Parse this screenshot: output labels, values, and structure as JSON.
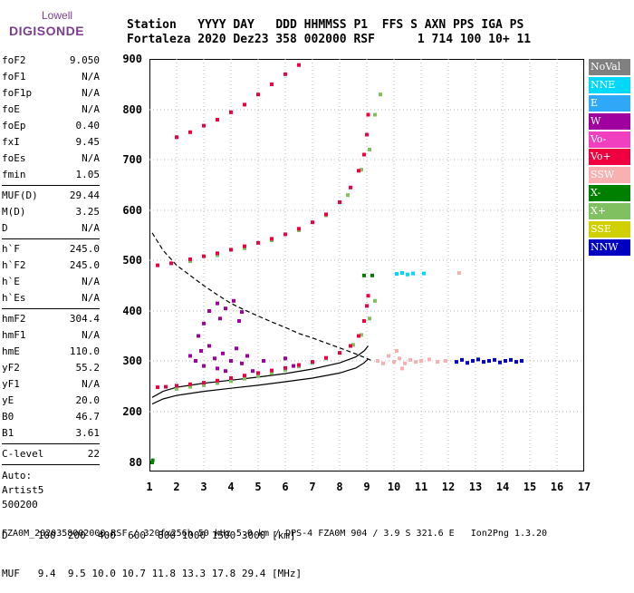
{
  "logo": {
    "top": "Lowell",
    "bottom": "DIGISONDE"
  },
  "header": {
    "row1": "Station   YYYY DAY   DDD HHMMSS P1  FFS S AXN PPS IGA PS",
    "row2": "Fortaleza 2020 Dez23 358 002000 RSF      1 714 100 10+ 11"
  },
  "params": {
    "group1": [
      {
        "name": "foF2",
        "value": "9.050"
      },
      {
        "name": "foF1",
        "value": "N/A"
      },
      {
        "name": "foF1p",
        "value": "N/A"
      },
      {
        "name": "foE",
        "value": "N/A"
      },
      {
        "name": "foEp",
        "value": "0.40"
      },
      {
        "name": "fxI",
        "value": "9.45"
      },
      {
        "name": "foEs",
        "value": "N/A"
      },
      {
        "name": "fmin",
        "value": "1.05"
      }
    ],
    "group2": [
      {
        "name": "MUF(D)",
        "value": "29.44"
      },
      {
        "name": "M(D)",
        "value": "3.25"
      },
      {
        "name": "D",
        "value": "N/A"
      }
    ],
    "group3": [
      {
        "name": "h`F",
        "value": "245.0"
      },
      {
        "name": "h`F2",
        "value": "245.0"
      },
      {
        "name": "h`E",
        "value": "N/A"
      },
      {
        "name": "h`Es",
        "value": "N/A"
      }
    ],
    "group4": [
      {
        "name": "hmF2",
        "value": "304.4"
      },
      {
        "name": "hmF1",
        "value": "N/A"
      },
      {
        "name": "hmE",
        "value": "110.0"
      },
      {
        "name": "yF2",
        "value": "55.2"
      },
      {
        "name": "yF1",
        "value": "N/A"
      },
      {
        "name": "yE",
        "value": "20.0"
      },
      {
        "name": "B0",
        "value": "46.7"
      },
      {
        "name": "B1",
        "value": "3.61"
      }
    ],
    "group5": [
      {
        "name": "C-level",
        "value": "22"
      }
    ],
    "auto": [
      "Auto:",
      "Artist5",
      "500200"
    ]
  },
  "legend": [
    {
      "label": "NoVal",
      "color": "#808080"
    },
    {
      "label": "NNE",
      "color": "#00d8f8"
    },
    {
      "label": "E",
      "color": "#30a8f8"
    },
    {
      "label": "W",
      "color": "#a000a0"
    },
    {
      "label": "Vo-",
      "color": "#f040c0"
    },
    {
      "label": "Vo+",
      "color": "#f00040"
    },
    {
      "label": "SSW",
      "color": "#f8b0b0"
    },
    {
      "label": "X-",
      "color": "#008000"
    },
    {
      "label": "X+",
      "color": "#80c060"
    },
    {
      "label": "SSE",
      "color": "#d0d000"
    },
    {
      "label": "NNW",
      "color": "#0000c0"
    }
  ],
  "bottom_table": {
    "d_row": "D     100  200  400  600  800 1000 1500 3000 [km]",
    "muf_row": "MUF   9.4  9.5 10.0 10.7 11.8 13.3 17.8 29.4 [MHz]"
  },
  "footer": "FZA0M_2020358002000.RSF / 320fx256h 50 kHz 5.0 km / DPS-4 FZA0M 904 / 3.9 S 321.6 E   Ion2Png 1.3.20",
  "chart_data": {
    "type": "scatter",
    "title": "",
    "xlabel": "",
    "ylabel": "",
    "xlim": [
      1,
      17
    ],
    "ylim": [
      80,
      900
    ],
    "xticks": [
      1,
      2,
      3,
      4,
      5,
      6,
      7,
      8,
      9,
      10,
      11,
      12,
      13,
      14,
      15,
      16,
      17
    ],
    "yticks": [
      80,
      200,
      300,
      400,
      500,
      600,
      700,
      800,
      900
    ],
    "grid": true,
    "legend_position": "right",
    "series": [
      {
        "name": "Vo+",
        "color": "#f00040",
        "points": [
          [
            1.3,
            248
          ],
          [
            1.6,
            249
          ],
          [
            2.0,
            251
          ],
          [
            2.5,
            254
          ],
          [
            3.0,
            257
          ],
          [
            3.5,
            261
          ],
          [
            4.0,
            266
          ],
          [
            4.5,
            271
          ],
          [
            5.0,
            276
          ],
          [
            5.5,
            281
          ],
          [
            6.0,
            286
          ],
          [
            6.5,
            292
          ],
          [
            7.0,
            298
          ],
          [
            7.5,
            306
          ],
          [
            8.0,
            316
          ],
          [
            8.4,
            330
          ],
          [
            8.7,
            350
          ],
          [
            8.9,
            380
          ],
          [
            9.0,
            410
          ],
          [
            9.05,
            430
          ],
          [
            1.3,
            490
          ],
          [
            1.8,
            494
          ],
          [
            2.5,
            502
          ],
          [
            3.0,
            508
          ],
          [
            3.5,
            514
          ],
          [
            4.0,
            521
          ],
          [
            4.5,
            528
          ],
          [
            5.0,
            535
          ],
          [
            5.5,
            543
          ],
          [
            6.0,
            552
          ],
          [
            6.5,
            563
          ],
          [
            7.0,
            576
          ],
          [
            7.5,
            592
          ],
          [
            8.0,
            616
          ],
          [
            8.4,
            645
          ],
          [
            8.7,
            678
          ],
          [
            8.9,
            710
          ],
          [
            9.0,
            750
          ],
          [
            9.05,
            790
          ],
          [
            2.0,
            745
          ],
          [
            2.5,
            755
          ],
          [
            3.0,
            768
          ],
          [
            3.5,
            780
          ],
          [
            4.0,
            795
          ],
          [
            4.5,
            810
          ],
          [
            5.0,
            830
          ],
          [
            5.5,
            850
          ],
          [
            6.0,
            870
          ],
          [
            6.5,
            888
          ]
        ]
      },
      {
        "name": "X+",
        "color": "#80c060",
        "points": [
          [
            2.0,
            245
          ],
          [
            2.5,
            249
          ],
          [
            3.0,
            252
          ],
          [
            3.5,
            256
          ],
          [
            4.0,
            260
          ],
          [
            4.5,
            265
          ],
          [
            5.0,
            270
          ],
          [
            5.5,
            276
          ],
          [
            6.0,
            282
          ],
          [
            6.5,
            289
          ],
          [
            7.0,
            296
          ],
          [
            7.5,
            305
          ],
          [
            8.0,
            316
          ],
          [
            8.5,
            332
          ],
          [
            8.8,
            352
          ],
          [
            9.1,
            385
          ],
          [
            9.3,
            420
          ],
          [
            2.5,
            498
          ],
          [
            3.5,
            510
          ],
          [
            4.5,
            524
          ],
          [
            5.5,
            540
          ],
          [
            6.5,
            560
          ],
          [
            7.5,
            590
          ],
          [
            8.3,
            630
          ],
          [
            8.8,
            680
          ],
          [
            9.1,
            720
          ],
          [
            9.3,
            790
          ],
          [
            9.5,
            830
          ]
        ]
      },
      {
        "name": "W",
        "color": "#a000a0",
        "points": [
          [
            2.5,
            310
          ],
          [
            2.7,
            300
          ],
          [
            2.9,
            320
          ],
          [
            3.0,
            290
          ],
          [
            3.2,
            330
          ],
          [
            3.4,
            305
          ],
          [
            3.5,
            285
          ],
          [
            3.7,
            315
          ],
          [
            3.8,
            280
          ],
          [
            4.0,
            300
          ],
          [
            4.2,
            325
          ],
          [
            4.4,
            295
          ],
          [
            4.6,
            310
          ],
          [
            4.8,
            280
          ],
          [
            3.2,
            400
          ],
          [
            3.5,
            415
          ],
          [
            3.8,
            405
          ],
          [
            4.1,
            420
          ],
          [
            4.4,
            398
          ],
          [
            3.0,
            375
          ],
          [
            3.6,
            385
          ],
          [
            4.3,
            380
          ],
          [
            2.8,
            350
          ],
          [
            5.2,
            300
          ],
          [
            6.0,
            305
          ],
          [
            6.3,
            290
          ]
        ]
      },
      {
        "name": "SSW",
        "color": "#f8b0b0",
        "points": [
          [
            9.4,
            300
          ],
          [
            9.6,
            295
          ],
          [
            9.8,
            310
          ],
          [
            10.0,
            298
          ],
          [
            10.2,
            305
          ],
          [
            10.4,
            295
          ],
          [
            10.6,
            302
          ],
          [
            10.8,
            298
          ],
          [
            11.0,
            300
          ],
          [
            11.3,
            303
          ],
          [
            11.6,
            298
          ],
          [
            11.9,
            300
          ],
          [
            10.1,
            320
          ],
          [
            10.3,
            285
          ],
          [
            12.4,
            475
          ]
        ]
      },
      {
        "name": "NNW",
        "color": "#0000c0",
        "points": [
          [
            12.3,
            298
          ],
          [
            12.5,
            302
          ],
          [
            12.7,
            296
          ],
          [
            12.9,
            300
          ],
          [
            13.1,
            303
          ],
          [
            13.3,
            298
          ],
          [
            13.5,
            300
          ],
          [
            13.7,
            302
          ],
          [
            13.9,
            297
          ],
          [
            14.1,
            300
          ],
          [
            14.3,
            302
          ],
          [
            14.5,
            298
          ],
          [
            14.7,
            300
          ]
        ]
      },
      {
        "name": "NNE",
        "color": "#00d8f8",
        "points": [
          [
            10.1,
            473
          ],
          [
            10.3,
            475
          ],
          [
            10.5,
            472
          ],
          [
            10.7,
            474
          ],
          [
            11.1,
            474
          ]
        ]
      },
      {
        "name": "X-",
        "color": "#008000",
        "points": [
          [
            1.1,
            80
          ],
          [
            1.12,
            85
          ],
          [
            9.2,
            470
          ],
          [
            8.9,
            470
          ]
        ]
      }
    ],
    "lines": [
      {
        "name": "profile",
        "style": "solid",
        "color": "#000000",
        "points": [
          [
            1.1,
            215
          ],
          [
            1.5,
            225
          ],
          [
            2.0,
            232
          ],
          [
            3.0,
            240
          ],
          [
            4.0,
            246
          ],
          [
            5.0,
            252
          ],
          [
            6.0,
            259
          ],
          [
            7.0,
            266
          ],
          [
            8.0,
            276
          ],
          [
            8.6,
            286
          ],
          [
            8.9,
            296
          ],
          [
            9.05,
            304
          ]
        ]
      },
      {
        "name": "profile-upper",
        "style": "solid",
        "color": "#000000",
        "points": [
          [
            1.1,
            228
          ],
          [
            1.5,
            240
          ],
          [
            2.0,
            248
          ],
          [
            3.0,
            256
          ],
          [
            4.0,
            262
          ],
          [
            5.0,
            268
          ],
          [
            6.0,
            275
          ],
          [
            7.0,
            284
          ],
          [
            8.0,
            296
          ],
          [
            8.6,
            308
          ],
          [
            8.9,
            320
          ],
          [
            9.05,
            330
          ]
        ]
      },
      {
        "name": "muf-curve",
        "style": "dashed",
        "color": "#000000",
        "points": [
          [
            1.1,
            555
          ],
          [
            1.5,
            520
          ],
          [
            2.0,
            490
          ],
          [
            2.5,
            470
          ],
          [
            3.0,
            450
          ],
          [
            3.5,
            432
          ],
          [
            4.0,
            415
          ],
          [
            4.5,
            402
          ],
          [
            5.0,
            390
          ],
          [
            5.5,
            378
          ],
          [
            6.0,
            367
          ],
          [
            6.5,
            355
          ],
          [
            7.0,
            346
          ],
          [
            7.5,
            336
          ],
          [
            8.0,
            326
          ],
          [
            8.5,
            316
          ],
          [
            9.0,
            305
          ],
          [
            9.2,
            300
          ]
        ]
      }
    ]
  }
}
